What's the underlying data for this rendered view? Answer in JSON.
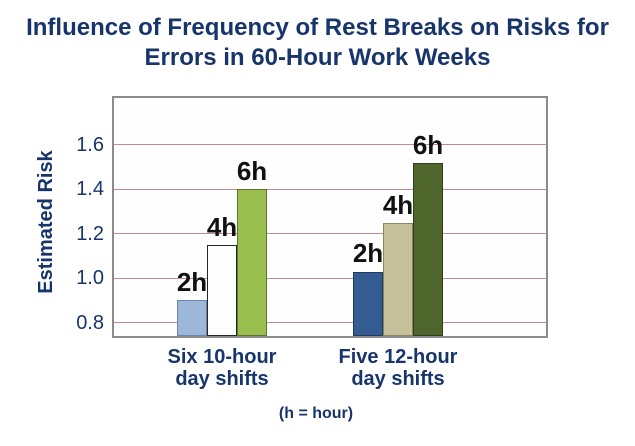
{
  "title": "Influence of Frequency of Rest Breaks on Risks for\nErrors in 60-Hour Work Weeks",
  "footnote": "(h = hour)",
  "colors": {
    "title_text": "#17356B",
    "axis_text": "#17356B",
    "bar_label_text": "#111111",
    "gridline": "#C08C8C",
    "plot_border": "#8C8C8C",
    "background": "#FFFFFF"
  },
  "chart_data": {
    "type": "bar",
    "title": "Influence of Frequency of Rest Breaks on Risks for Errors in 60-Hour Work Weeks",
    "xlabel": "",
    "ylabel": "Estimated Risk",
    "ylim": [
      0.74,
      1.81
    ],
    "yticks": [
      0.8,
      1.0,
      1.2,
      1.4,
      1.6
    ],
    "grid": true,
    "legend": false,
    "annotation_note": "series name (rest break frequency) shown above each bar; (h = hour) footnote below axis",
    "categories": [
      "Six 10-hour\nday shifts",
      "Five 12-hour\nday shifts"
    ],
    "series": [
      {
        "name": "2h",
        "values": [
          0.9,
          1.03
        ],
        "fills": [
          "#9CB7D9",
          "#345C92"
        ],
        "borders": [
          "#6C87A6",
          "#1F3A5F"
        ]
      },
      {
        "name": "4h",
        "values": [
          1.15,
          1.25
        ],
        "fills": [
          "#FDFDFD",
          "#C6C09B"
        ],
        "borders": [
          "#262626",
          "#8A8563"
        ]
      },
      {
        "name": "6h",
        "values": [
          1.4,
          1.52
        ],
        "fills": [
          "#9ABF4E",
          "#4E652C"
        ],
        "borders": [
          "#5D7430",
          "#2F3F1A"
        ]
      }
    ]
  }
}
